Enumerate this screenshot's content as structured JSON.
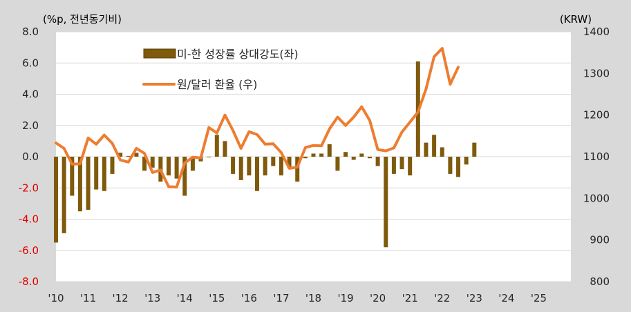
{
  "chart_data": {
    "type": "bar+line",
    "left_axis_label": "(%p, 전년동기비)",
    "right_axis_label": "(KRW)",
    "left_ylim": [
      -8.0,
      8.0
    ],
    "left_ticks": [
      "8.0",
      "6.0",
      "4.0",
      "2.0",
      "0.0",
      "-2.0",
      "-4.0",
      "-6.0",
      "-8.0"
    ],
    "right_ylim": [
      800,
      1400
    ],
    "right_ticks": [
      "1400",
      "1300",
      "1200",
      "1100",
      "1000",
      "900",
      "800"
    ],
    "x_ticks": [
      "'10",
      "'11",
      "'12",
      "'13",
      "'14",
      "'15",
      "'16",
      "'17",
      "'18",
      "'19",
      "'20",
      "'21",
      "'22",
      "'23",
      "'24",
      "'25"
    ],
    "x_start_year": 2010,
    "x_end_year": 2026,
    "series": [
      {
        "name": "미-한 성장률 상대강도(좌)",
        "kind": "bar",
        "color": "#7f5a0c",
        "x": [
          2010.0,
          2010.25,
          2010.5,
          2010.75,
          2011.0,
          2011.25,
          2011.5,
          2011.75,
          2012.0,
          2012.25,
          2012.5,
          2012.75,
          2013.0,
          2013.25,
          2013.5,
          2013.75,
          2014.0,
          2014.25,
          2014.5,
          2014.75,
          2015.0,
          2015.25,
          2015.5,
          2015.75,
          2016.0,
          2016.25,
          2016.5,
          2016.75,
          2017.0,
          2017.25,
          2017.5,
          2017.75,
          2018.0,
          2018.25,
          2018.5,
          2018.75,
          2019.0,
          2019.25,
          2019.5,
          2019.75,
          2020.0,
          2020.25,
          2020.5,
          2020.75,
          2021.0,
          2021.25,
          2021.5,
          2021.75,
          2022.0,
          2022.25,
          2022.5,
          2022.75,
          2023.0
        ],
        "values": [
          -5.5,
          -4.9,
          -2.5,
          -3.5,
          -3.4,
          -2.1,
          -2.2,
          -1.1,
          0.25,
          0.05,
          0.25,
          -0.9,
          -0.7,
          -1.6,
          -1.2,
          -1.4,
          -2.5,
          -0.9,
          -0.3,
          0.0,
          1.4,
          1.0,
          -1.1,
          -1.5,
          -1.2,
          -2.2,
          -1.2,
          -0.6,
          -1.2,
          -0.7,
          -1.6,
          -0.1,
          0.2,
          0.2,
          0.8,
          -0.9,
          0.3,
          -0.2,
          0.2,
          -0.1,
          -0.6,
          -5.8,
          -1.1,
          -0.8,
          -1.2,
          6.1,
          0.9,
          1.4,
          0.6,
          -1.1,
          -1.3,
          -0.5,
          0.9
        ]
      },
      {
        "name": "원/달러 환율 (우)",
        "kind": "line",
        "color": "#ed7d31",
        "x": [
          2010.0,
          2010.25,
          2010.5,
          2010.75,
          2011.0,
          2011.25,
          2011.5,
          2011.75,
          2012.0,
          2012.25,
          2012.5,
          2012.75,
          2013.0,
          2013.25,
          2013.5,
          2013.75,
          2014.0,
          2014.25,
          2014.5,
          2014.75,
          2015.0,
          2015.25,
          2015.5,
          2015.75,
          2016.0,
          2016.25,
          2016.5,
          2016.75,
          2017.0,
          2017.25,
          2017.5,
          2017.75,
          2018.0,
          2018.25,
          2018.5,
          2018.75,
          2019.0,
          2019.25,
          2019.5,
          2019.75,
          2020.0,
          2020.25,
          2020.5,
          2020.75,
          2021.0,
          2021.25,
          2021.5,
          2021.75,
          2022.0,
          2022.25,
          2022.5
        ],
        "values": [
          1133,
          1120,
          1082,
          1083,
          1145,
          1130,
          1152,
          1132,
          1092,
          1087,
          1120,
          1108,
          1062,
          1068,
          1028,
          1027,
          1085,
          1099,
          1097,
          1170,
          1157,
          1200,
          1163,
          1120,
          1160,
          1153,
          1130,
          1131,
          1110,
          1072,
          1075,
          1122,
          1127,
          1126,
          1167,
          1195,
          1175,
          1195,
          1220,
          1187,
          1117,
          1114,
          1121,
          1159,
          1183,
          1207,
          1263,
          1340,
          1360,
          1274,
          1315
        ]
      }
    ]
  }
}
